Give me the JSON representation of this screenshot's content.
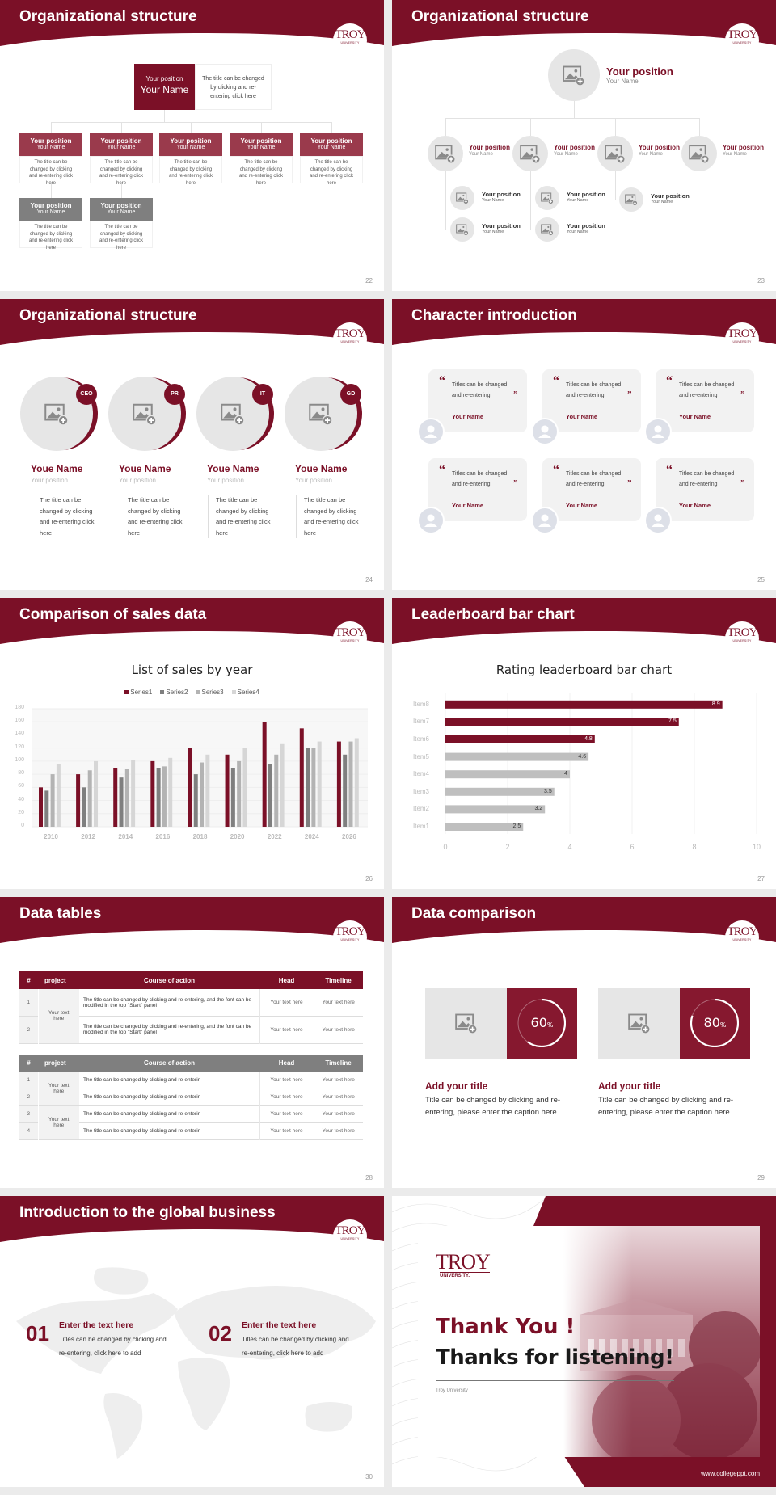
{
  "brand": {
    "primary": "#7b1027",
    "accent_light": "#9a3a4c",
    "gray": "#7f7f7f",
    "logo_text": "TROY",
    "logo_sub": "UNIVERSITY"
  },
  "s22": {
    "title": "Organizational structure",
    "page": "22",
    "top": {
      "position": "Your position",
      "name": "Your Name",
      "desc": "The title can be changed by clicking and re-entering click here"
    },
    "members": [
      {
        "position": "Your position",
        "name": "Your Name",
        "desc": "The title can be changed by clicking and re-entering click here",
        "style": "maroon"
      },
      {
        "position": "Your position",
        "name": "Your Name",
        "desc": "The title can be changed by clicking and re-entering click here",
        "style": "maroon"
      },
      {
        "position": "Your position",
        "name": "Your Name",
        "desc": "The title can be changed by clicking and re-entering click here",
        "style": "maroon"
      },
      {
        "position": "Your position",
        "name": "Your Name",
        "desc": "The title can be changed by clicking and re-entering click here",
        "style": "maroon"
      },
      {
        "position": "Your position",
        "name": "Your Name",
        "desc": "The title can be changed by clicking and re-entering click here",
        "style": "maroon"
      },
      {
        "position": "Your position",
        "name": "Your Name",
        "desc": "The title can be changed by clicking and re-entering click here",
        "style": "gray"
      },
      {
        "position": "Your position",
        "name": "Your Name",
        "desc": "The title can be changed by clicking and re-entering click here",
        "style": "gray"
      }
    ]
  },
  "s23": {
    "title": "Organizational structure",
    "page": "23",
    "top": {
      "position": "Your position",
      "name": "Your Name"
    },
    "level1": [
      {
        "position": "Your position",
        "name": "Your Name"
      },
      {
        "position": "Your position",
        "name": "Your Name"
      },
      {
        "position": "Your position",
        "name": "Your Name"
      },
      {
        "position": "Your position",
        "name": "Your Name"
      }
    ],
    "level2": [
      {
        "position": "Your position",
        "name": "Your Name"
      },
      {
        "position": "Your position",
        "name": "Your Name"
      },
      {
        "position": "Your position",
        "name": "Your Name"
      },
      {
        "position": "Your position",
        "name": "Your Name"
      },
      {
        "position": "Your position",
        "name": "Your Name"
      }
    ]
  },
  "s24": {
    "title": "Organizational structure",
    "page": "24",
    "people": [
      {
        "badge": "CEO",
        "name": "Youe Name",
        "position": "Your position",
        "desc": "The title can be changed by clicking and re-entering click here"
      },
      {
        "badge": "PR",
        "name": "Youe Name",
        "position": "Your position",
        "desc": "The title can be changed by clicking and re-entering click here"
      },
      {
        "badge": "IT",
        "name": "Youe Name",
        "position": "Your position",
        "desc": "The title can be changed by clicking and re-entering click here"
      },
      {
        "badge": "GD",
        "name": "Youe Name",
        "position": "Your position",
        "desc": "The title can be changed by clicking and re-entering click here"
      }
    ]
  },
  "s25": {
    "title": "Character introduction",
    "page": "25",
    "open_quote": "“",
    "close_quote": "”",
    "cards": [
      {
        "quote": "Titles can be changed and re-entering",
        "name": "Your Name"
      },
      {
        "quote": "Titles can be changed and re-entering",
        "name": "Your Name"
      },
      {
        "quote": "Titles can be changed and re-entering",
        "name": "Your Name"
      },
      {
        "quote": "Titles can be changed and re-entering",
        "name": "Your Name"
      },
      {
        "quote": "Titles can be changed and re-entering",
        "name": "Your Name"
      },
      {
        "quote": "Titles can be changed and re-entering",
        "name": "Your Name"
      }
    ]
  },
  "s26": {
    "title": "Comparison of sales data",
    "page": "26"
  },
  "s27": {
    "title": "Leaderboard bar chart",
    "page": "27"
  },
  "chart_data": [
    {
      "type": "bar",
      "title": "List of sales by year",
      "categories": [
        "2010",
        "2012",
        "2014",
        "2016",
        "2018",
        "2020",
        "2022",
        "2024",
        "2026"
      ],
      "series": [
        {
          "name": "Series1",
          "color": "#7b1027",
          "values": [
            60,
            80,
            90,
            100,
            120,
            110,
            160,
            150,
            130
          ]
        },
        {
          "name": "Series2",
          "color": "#7f7f7f",
          "values": [
            55,
            60,
            75,
            90,
            80,
            90,
            96,
            120,
            110
          ]
        },
        {
          "name": "Series3",
          "color": "#b3b3b3",
          "values": [
            80,
            86,
            88,
            92,
            98,
            100,
            110,
            120,
            130
          ]
        },
        {
          "name": "Series4",
          "color": "#d6d6d6",
          "values": [
            95,
            100,
            102,
            105,
            110,
            120,
            126,
            130,
            135
          ]
        }
      ],
      "ylim": [
        0,
        180
      ],
      "yticks": [
        "0",
        "20",
        "40",
        "60",
        "80",
        "100",
        "120",
        "140",
        "160",
        "180"
      ],
      "legend": "top",
      "grid": true
    },
    {
      "type": "bar",
      "orientation": "horizontal",
      "title": "Rating leaderboard bar chart",
      "categories": [
        "Item1",
        "Item2",
        "Item3",
        "Item4",
        "Item5",
        "Item6",
        "Item7",
        "Item8"
      ],
      "values": [
        2.5,
        3.2,
        3.5,
        4,
        4.6,
        4.8,
        7.5,
        8.9
      ],
      "labels": [
        "2.5",
        "3.2",
        "3.5",
        "4",
        "4.6",
        "4.8",
        "7.5",
        "8.9"
      ],
      "colors": [
        "#bfbfbf",
        "#bfbfbf",
        "#bfbfbf",
        "#bfbfbf",
        "#bfbfbf",
        "#7b1027",
        "#7b1027",
        "#7b1027"
      ],
      "xlim": [
        0,
        10
      ],
      "xticks": [
        "0",
        "2",
        "4",
        "6",
        "8",
        "10"
      ],
      "grid": true
    }
  ],
  "s28": {
    "title": "Data tables",
    "page": "28",
    "table1": {
      "headers": [
        "#",
        "project",
        "Course of action",
        "Head",
        "Timeline"
      ],
      "project": "Your text here",
      "rows": [
        {
          "num": "1",
          "course": "The title can be changed by clicking and re-entering, and the font can be modified in the top \"Start\" panel",
          "head": "Your text here",
          "timeline": "Your text here"
        },
        {
          "num": "2",
          "course": "The title can be changed by clicking and re-entering, and the font can be modified in the top \"Start\" panel",
          "head": "Your text here",
          "timeline": "Your text here"
        }
      ]
    },
    "table2": {
      "headers": [
        "#",
        "project",
        "Course of action",
        "Head",
        "Timeline"
      ],
      "projects": [
        "Your text here",
        "Your text here"
      ],
      "rows": [
        {
          "num": "1",
          "course": "The title can be changed by clicking and re-enterin",
          "head": "Your text here",
          "timeline": "Your text here"
        },
        {
          "num": "2",
          "course": "The title can be changed by clicking and re-enterin",
          "head": "Your text here",
          "timeline": "Your text here"
        },
        {
          "num": "3",
          "course": "The title can be changed by clicking and re-enterin",
          "head": "Your text here",
          "timeline": "Your text here"
        },
        {
          "num": "4",
          "course": "The title can be changed by clicking and re-enterin",
          "head": "Your text here",
          "timeline": "Your text here"
        }
      ]
    }
  },
  "s29": {
    "title": "Data comparison",
    "page": "29",
    "items": [
      {
        "percent": 60,
        "value": "60",
        "unit": "%",
        "title": "Add your title",
        "text": "Title can be changed by clicking and re-entering, please enter the caption here"
      },
      {
        "percent": 80,
        "value": "80",
        "unit": "%",
        "title": "Add your title",
        "text": "Title can be changed by clicking and re-entering, please enter the caption here"
      }
    ]
  },
  "s30": {
    "title": "Introduction to the global business",
    "page": "30",
    "items": [
      {
        "num": "01",
        "heading": "Enter the text here",
        "text": "Titles can be changed by clicking and re-entering, click here to add"
      },
      {
        "num": "02",
        "heading": "Enter the text here",
        "text": "Titles can be changed by clicking and re-entering, click here to add"
      }
    ]
  },
  "s31": {
    "logo_text": "TROY",
    "logo_sub": "UNIVERSITY.",
    "thank_you": "Thank You !",
    "thanks": "Thanks for listening!",
    "subtitle": "Troy University",
    "website": "www.collegeppt.com"
  }
}
